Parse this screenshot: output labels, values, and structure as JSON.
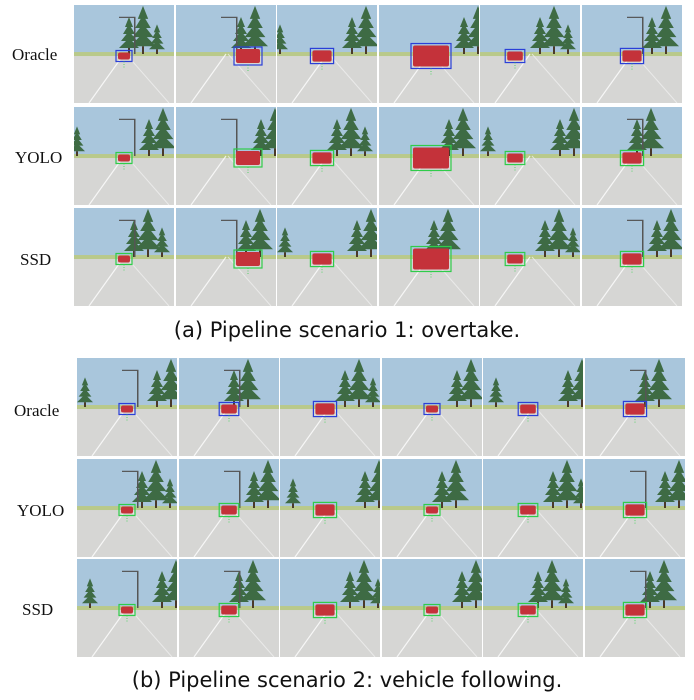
{
  "figure": {
    "panels": [
      {
        "caption": "(a) Pipeline scenario 1: overtake.",
        "rows": [
          {
            "label": "Oracle",
            "box_color": "#2a3fd8"
          },
          {
            "label": "YOLO",
            "box_color": "#2fcc4a"
          },
          {
            "label": "SSD",
            "box_color": "#2fcc4a"
          }
        ]
      },
      {
        "caption": "(b) Pipeline scenario 2: vehicle following.",
        "rows": [
          {
            "label": "Oracle",
            "box_color": "#2a3fd8"
          },
          {
            "label": "YOLO",
            "box_color": "#2fcc4a"
          },
          {
            "label": "SSD",
            "box_color": "#2fcc4a"
          }
        ]
      }
    ],
    "colors": {
      "sky": "#a9c6dc",
      "road": "#d6d6d4",
      "grass": "#b9c98a",
      "tree": "#3e6b44",
      "car": "#c4323a"
    }
  }
}
